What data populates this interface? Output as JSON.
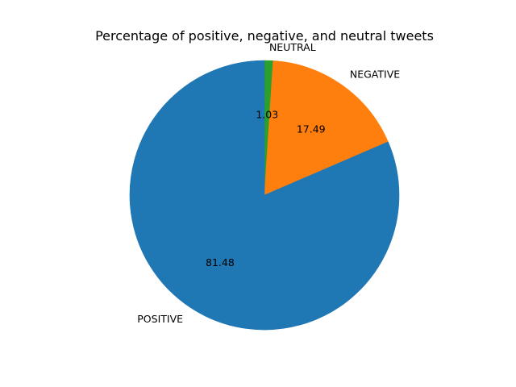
{
  "chart_data": {
    "type": "pie",
    "title": "Percentage of positive, negative, and neutral tweets",
    "slices": [
      {
        "label": "NEUTRAL",
        "value": 1.03,
        "display": "1.03",
        "color": "#2ca02c"
      },
      {
        "label": "NEGATIVE",
        "value": 17.49,
        "display": "17.49",
        "color": "#ff7f0e"
      },
      {
        "label": "POSITIVE",
        "value": 81.48,
        "display": "81.48",
        "color": "#1f77b4"
      }
    ],
    "start_angle_deg": 90,
    "direction": "clockwise",
    "legend": "none"
  }
}
